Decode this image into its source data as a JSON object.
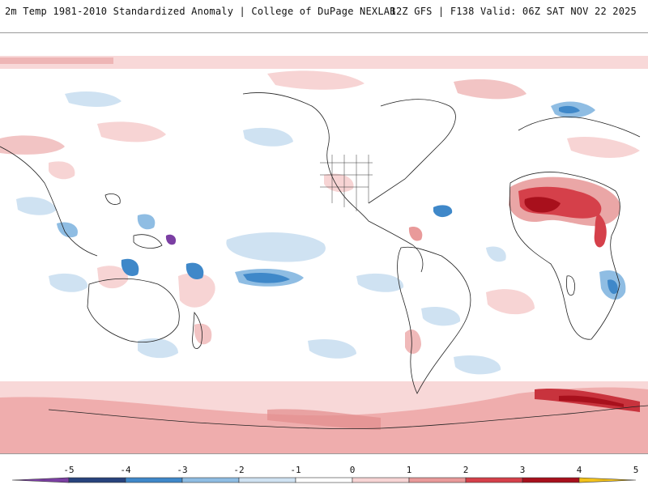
{
  "header": {
    "title": "2m Temp 1981-2010 Standardized Anomaly | College of DuPage NEXLAB",
    "run_info": "12Z GFS | F138 Valid: 06Z SAT NOV 22 2025"
  },
  "colorbar": {
    "ticks": [
      "-5",
      "-4",
      "-3",
      "-2",
      "-1",
      "0",
      "1",
      "2",
      "3",
      "4",
      "5"
    ],
    "colors": [
      "#7b3fa3",
      "#27437d",
      "#3f88c9",
      "#8fbde3",
      "#cfe2f2",
      "#ffffff",
      "#f7d4d4",
      "#e99a9a",
      "#d5404a",
      "#a8101c",
      "#f3c21b"
    ]
  }
}
